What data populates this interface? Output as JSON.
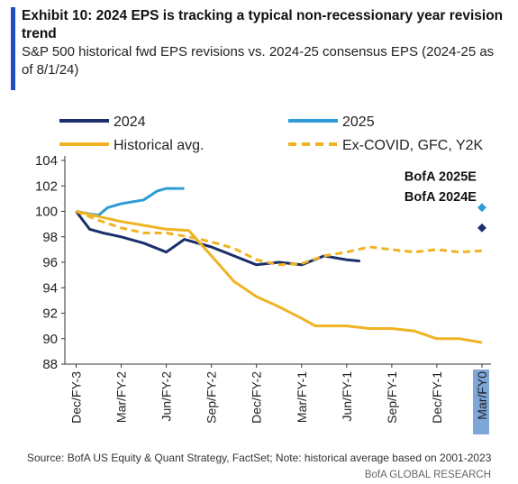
{
  "chart_data": {
    "type": "line",
    "title": "Exhibit 10: 2024 EPS is tracking a typical non-recessionary year revision trend",
    "subtitle": "S&P 500 historical fwd EPS revisions vs. 2024-25 consensus EPS (2024-25 as of 8/1/24)",
    "xlim": [
      -0.25,
      9.2
    ],
    "xticks": [
      {
        "value": 0,
        "label": "Dec/FY-3"
      },
      {
        "value": 1,
        "label": "Mar/FY-2"
      },
      {
        "value": 2,
        "label": "Jun/FY-2"
      },
      {
        "value": 3,
        "label": "Sep/FY-2"
      },
      {
        "value": 4,
        "label": "Dec/FY-2"
      },
      {
        "value": 5,
        "label": "Mar/FY-1"
      },
      {
        "value": 6,
        "label": "Jun/FY-1"
      },
      {
        "value": 7,
        "label": "Sep/FY-1"
      },
      {
        "value": 8,
        "label": "Dec/FY-1"
      },
      {
        "value": 9,
        "label": "Mar/FY0"
      }
    ],
    "ylim": [
      88,
      104
    ],
    "yticks": [
      88,
      90,
      92,
      94,
      96,
      98,
      100,
      102,
      104
    ],
    "series": [
      {
        "name": "2024",
        "color": "#1a2f6b",
        "dash": false,
        "x": [
          0,
          0.3,
          0.6,
          1,
          1.5,
          2,
          2.4,
          3,
          3.5,
          4,
          4.5,
          5,
          5.5,
          6,
          6.3
        ],
        "values": [
          100,
          98.6,
          98.3,
          98,
          97.5,
          96.8,
          97.8,
          97.2,
          96.5,
          95.8,
          96,
          95.8,
          96.5,
          96.2,
          96.1
        ]
      },
      {
        "name": "2025",
        "color": "#2e9bd6",
        "dash": false,
        "x": [
          0,
          0.3,
          0.5,
          0.7,
          1,
          1.5,
          1.8,
          2,
          2.4
        ],
        "values": [
          100,
          99.8,
          99.7,
          100.3,
          100.6,
          100.9,
          101.6,
          101.8,
          101.8
        ]
      },
      {
        "name": "Historical avg.",
        "color": "#f0b323",
        "dash": false,
        "x": [
          0,
          0.5,
          1,
          1.5,
          2,
          2.5,
          3,
          3.5,
          4,
          4.5,
          5,
          5.3,
          6,
          6.5,
          7,
          7.5,
          8,
          8.5,
          9
        ],
        "values": [
          100,
          99.6,
          99.2,
          98.9,
          98.6,
          98.5,
          96.5,
          94.5,
          93.3,
          92.5,
          91.6,
          91,
          91,
          90.8,
          90.8,
          90.6,
          90,
          90,
          89.7
        ]
      },
      {
        "name": "Ex-COVID, GFC, Y2K",
        "color": "#f0b323",
        "dash": true,
        "x": [
          0,
          0.5,
          1,
          1.5,
          2,
          2.5,
          3,
          3.5,
          4,
          4.5,
          5,
          5.5,
          6,
          6.5,
          7,
          7.5,
          8,
          8.5,
          9
        ],
        "values": [
          100,
          99.3,
          98.7,
          98.3,
          98.3,
          98,
          97.6,
          97.1,
          96.2,
          95.8,
          95.9,
          96.5,
          96.8,
          97.2,
          97,
          96.8,
          97,
          96.8,
          96.9
        ]
      }
    ],
    "points": [
      {
        "label": "BofA 2025E",
        "x": 9,
        "y": 100.3,
        "color": "#2e9bd6"
      },
      {
        "label": "BofA 2024E",
        "x": 9,
        "y": 98.7,
        "color": "#1a2f6b"
      }
    ],
    "source": "Source: BofA US Equity & Quant Strategy, FactSet; Note: historical average based on 2001-2023",
    "footer": "BofA GLOBAL RESEARCH"
  }
}
